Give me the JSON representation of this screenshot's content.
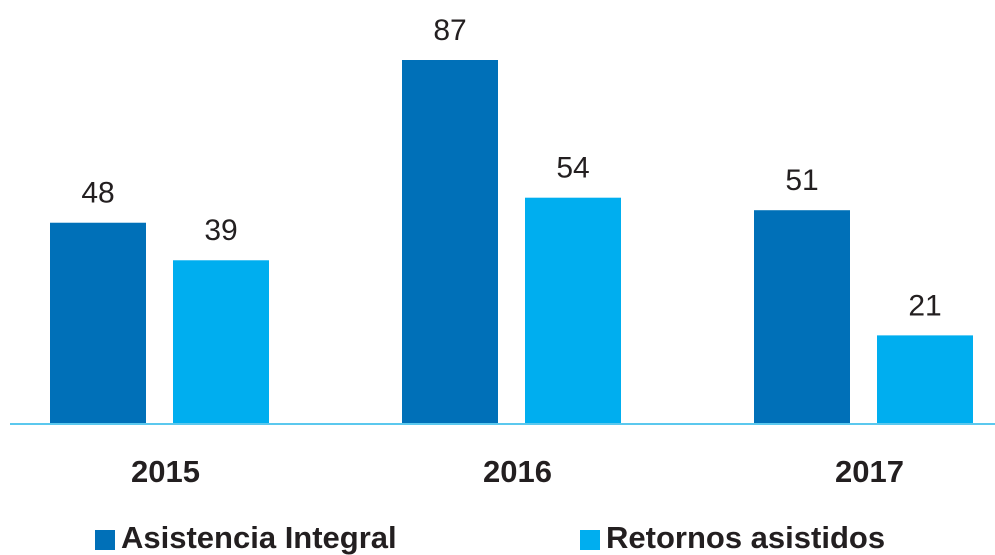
{
  "chart_data": {
    "type": "bar",
    "categories": [
      "2015",
      "2016",
      "2017"
    ],
    "series": [
      {
        "name": "Asistencia Integral",
        "color": "#0070b8",
        "values": [
          48,
          87,
          51
        ]
      },
      {
        "name": "Retornos asistidos",
        "color": "#00aeef",
        "values": [
          39,
          54,
          21
        ]
      }
    ]
  }
}
